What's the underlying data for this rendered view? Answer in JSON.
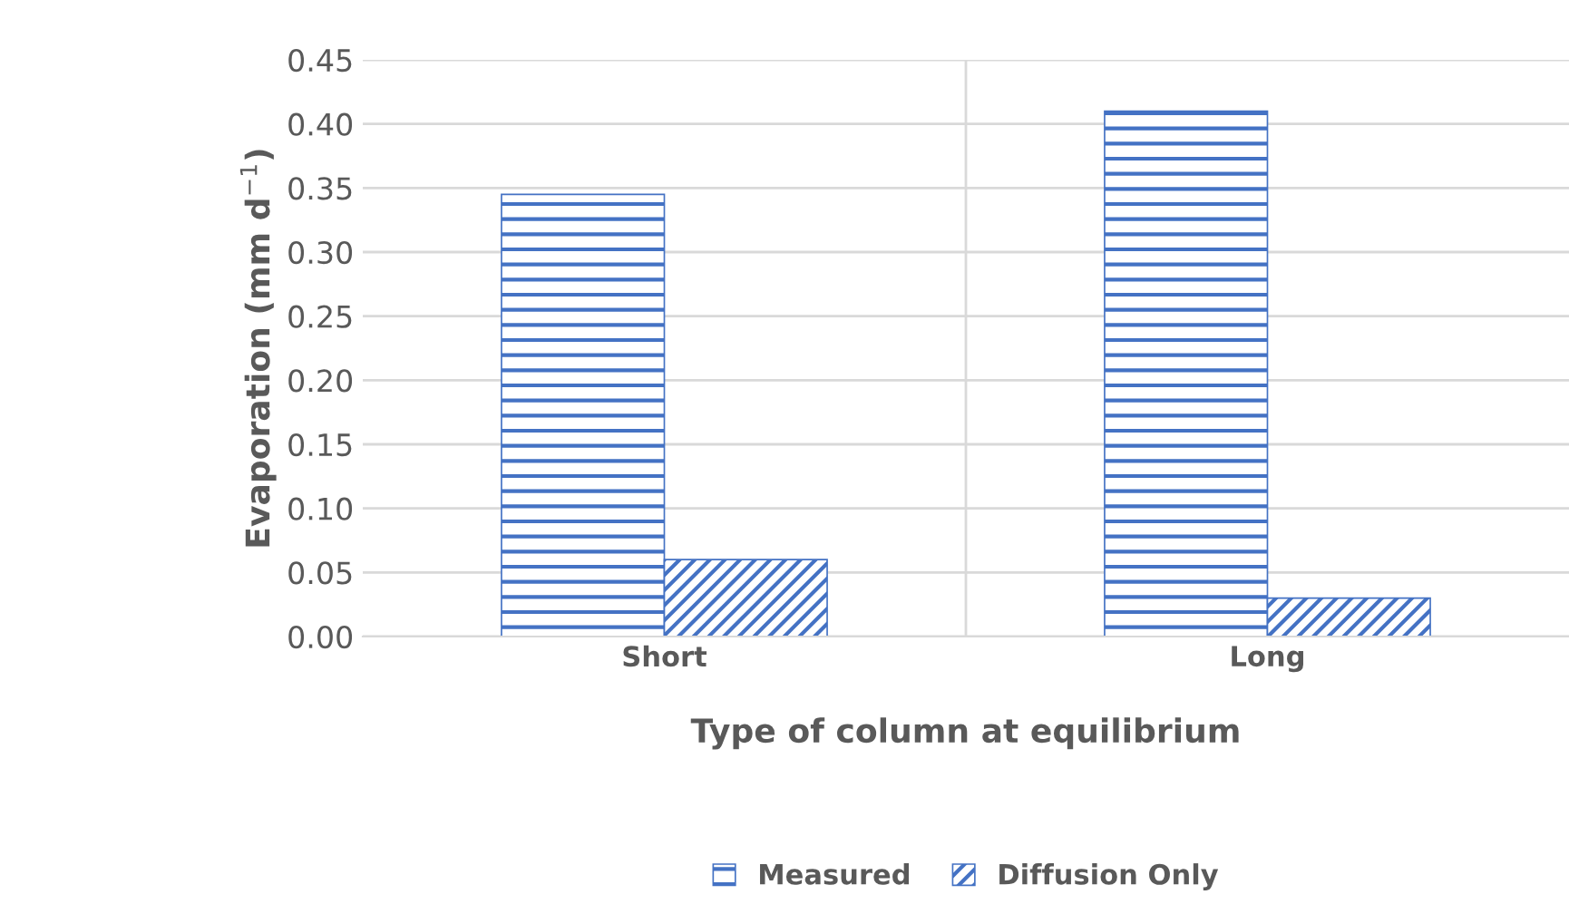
{
  "chart_data": {
    "type": "bar",
    "xlabel": "Type of column at equilibrium",
    "ylabel": "Evaporation (mm d$^{−1}$)",
    "categories": [
      "Short",
      "Long"
    ],
    "series": [
      {
        "name": "Measured",
        "color": "#4472c4",
        "values": [
          0.345,
          0.41
        ]
      },
      {
        "name": "Diffusion Only",
        "color": "#4472c4",
        "values": [
          0.06,
          0.03
        ]
      }
    ],
    "ylim": [
      0,
      0.45
    ],
    "yticks": [
      {
        "value": 0,
        "label": "0.00"
      },
      {
        "value": 0.05,
        "label": "0.05"
      },
      {
        "value": 0.1,
        "label": "0.10"
      },
      {
        "value": 0.15,
        "label": "0.15"
      },
      {
        "value": 0.2,
        "label": "0.20"
      },
      {
        "value": 0.25,
        "label": "0.25"
      },
      {
        "value": 0.3,
        "label": "0.30"
      },
      {
        "value": 0.35,
        "label": "0.35"
      },
      {
        "value": 0.4,
        "label": "0.40"
      },
      {
        "value": 0.45,
        "label": "0.45"
      }
    ],
    "grid": true,
    "legend": "bottom"
  }
}
